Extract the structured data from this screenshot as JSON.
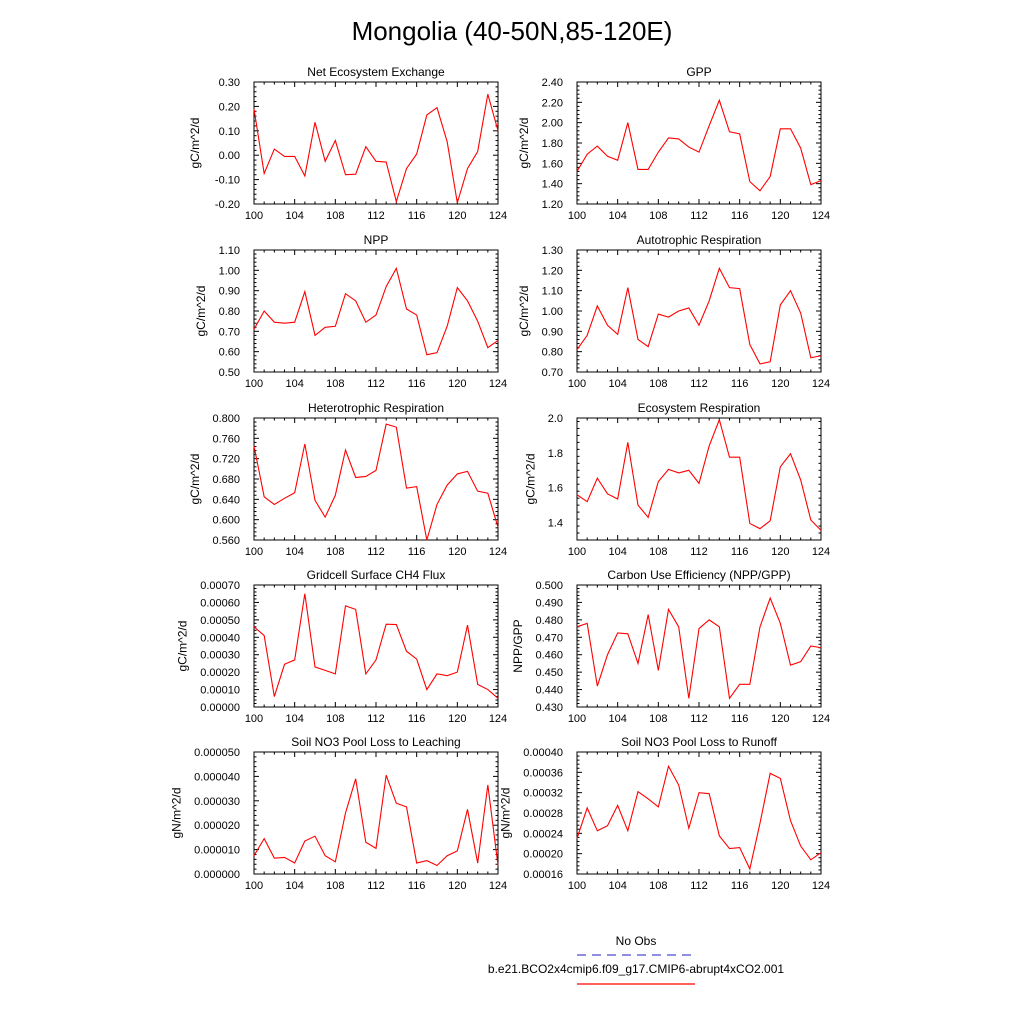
{
  "page_title": "Mongolia (40-50N,85-120E)",
  "legend": {
    "obs_label": "No Obs",
    "model_label": "b.e21.BCO2x4cmip6.f09_g17.CMIP6-abrupt4xCO2.001",
    "obs_color": "#4a4ad0",
    "model_color": "#ff0000"
  },
  "chart_data": [
    {
      "type": "line",
      "title": "Net Ecosystem Exchange",
      "ylabel": "gC/m^2/d",
      "xlim": [
        100,
        124
      ],
      "ylim": [
        -0.2,
        0.3
      ],
      "xticks": [
        100,
        104,
        108,
        112,
        116,
        120,
        124
      ],
      "xtick_labels": [
        "100",
        "104",
        "108",
        "112",
        "116",
        "120",
        "124"
      ],
      "yticks": [
        -0.2,
        -0.1,
        0.0,
        0.1,
        0.2,
        0.3
      ],
      "ytick_labels": [
        "-0.20",
        "-0.10",
        "0.00",
        "0.10",
        "0.20",
        "0.30"
      ],
      "series": [
        {
          "color": "#ff0000",
          "x": [
            100,
            101,
            102,
            103,
            104,
            105,
            106,
            107,
            108,
            109,
            110,
            111,
            112,
            113,
            114,
            115,
            116,
            117,
            118,
            119,
            120,
            121,
            122,
            123,
            124
          ],
          "y": [
            0.19,
            -0.075,
            0.025,
            -0.005,
            -0.005,
            -0.085,
            0.135,
            -0.025,
            0.06,
            -0.08,
            -0.078,
            0.035,
            -0.025,
            -0.028,
            -0.19,
            -0.055,
            0.005,
            0.165,
            0.195,
            0.055,
            -0.195,
            -0.055,
            0.015,
            0.25,
            0.1
          ]
        }
      ]
    },
    {
      "type": "line",
      "title": "GPP",
      "ylabel": "gC/m^2/d",
      "xlim": [
        100,
        124
      ],
      "ylim": [
        1.2,
        2.4
      ],
      "xticks": [
        100,
        104,
        108,
        112,
        116,
        120,
        124
      ],
      "xtick_labels": [
        "100",
        "104",
        "108",
        "112",
        "116",
        "120",
        "124"
      ],
      "yticks": [
        1.2,
        1.4,
        1.6,
        1.8,
        2.0,
        2.2,
        2.4
      ],
      "ytick_labels": [
        "1.20",
        "1.40",
        "1.60",
        "1.80",
        "2.00",
        "2.20",
        "2.40"
      ],
      "series": [
        {
          "color": "#ff0000",
          "x": [
            100,
            101,
            102,
            103,
            104,
            105,
            106,
            107,
            108,
            109,
            110,
            111,
            112,
            113,
            114,
            115,
            116,
            117,
            118,
            119,
            120,
            121,
            122,
            123,
            124
          ],
          "y": [
            1.52,
            1.69,
            1.77,
            1.67,
            1.63,
            2.0,
            1.54,
            1.54,
            1.71,
            1.85,
            1.84,
            1.76,
            1.71,
            1.97,
            2.22,
            1.91,
            1.89,
            1.42,
            1.33,
            1.47,
            1.94,
            1.94,
            1.75,
            1.39,
            1.43
          ]
        }
      ]
    },
    {
      "type": "line",
      "title": "NPP",
      "ylabel": "gC/m^2/d",
      "xlim": [
        100,
        124
      ],
      "ylim": [
        0.5,
        1.1
      ],
      "xticks": [
        100,
        104,
        108,
        112,
        116,
        120,
        124
      ],
      "xtick_labels": [
        "100",
        "104",
        "108",
        "112",
        "116",
        "120",
        "124"
      ],
      "yticks": [
        0.5,
        0.6,
        0.7,
        0.8,
        0.9,
        1.0,
        1.1
      ],
      "ytick_labels": [
        "0.50",
        "0.60",
        "0.70",
        "0.80",
        "0.90",
        "1.00",
        "1.10"
      ],
      "series": [
        {
          "color": "#ff0000",
          "x": [
            100,
            101,
            102,
            103,
            104,
            105,
            106,
            107,
            108,
            109,
            110,
            111,
            112,
            113,
            114,
            115,
            116,
            117,
            118,
            119,
            120,
            121,
            122,
            123,
            124
          ],
          "y": [
            0.71,
            0.8,
            0.745,
            0.74,
            0.745,
            0.895,
            0.68,
            0.72,
            0.725,
            0.885,
            0.85,
            0.745,
            0.78,
            0.92,
            1.01,
            0.81,
            0.78,
            0.585,
            0.595,
            0.725,
            0.915,
            0.85,
            0.75,
            0.62,
            0.655
          ]
        }
      ]
    },
    {
      "type": "line",
      "title": "Autotrophic Respiration",
      "ylabel": "gC/m^2/d",
      "xlim": [
        100,
        124
      ],
      "ylim": [
        0.7,
        1.3
      ],
      "xticks": [
        100,
        104,
        108,
        112,
        116,
        120,
        124
      ],
      "xtick_labels": [
        "100",
        "104",
        "108",
        "112",
        "116",
        "120",
        "124"
      ],
      "yticks": [
        0.7,
        0.8,
        0.9,
        1.0,
        1.1,
        1.2,
        1.3
      ],
      "ytick_labels": [
        "0.70",
        "0.80",
        "0.90",
        "1.00",
        "1.10",
        "1.20",
        "1.30"
      ],
      "series": [
        {
          "color": "#ff0000",
          "x": [
            100,
            101,
            102,
            103,
            104,
            105,
            106,
            107,
            108,
            109,
            110,
            111,
            112,
            113,
            114,
            115,
            116,
            117,
            118,
            119,
            120,
            121,
            122,
            123,
            124
          ],
          "y": [
            0.81,
            0.88,
            1.025,
            0.93,
            0.885,
            1.115,
            0.86,
            0.825,
            0.985,
            0.97,
            1.0,
            1.015,
            0.93,
            1.05,
            1.21,
            1.115,
            1.11,
            0.835,
            0.74,
            0.75,
            1.03,
            1.1,
            0.99,
            0.77,
            0.78
          ]
        }
      ]
    },
    {
      "type": "line",
      "title": "Heterotrophic Respiration",
      "ylabel": "gC/m^2/d",
      "xlim": [
        100,
        124
      ],
      "ylim": [
        0.56,
        0.8
      ],
      "xticks": [
        100,
        104,
        108,
        112,
        116,
        120,
        124
      ],
      "xtick_labels": [
        "100",
        "104",
        "108",
        "112",
        "116",
        "120",
        "124"
      ],
      "yticks": [
        0.56,
        0.6,
        0.64,
        0.68,
        0.72,
        0.76,
        0.8
      ],
      "ytick_labels": [
        "0.560",
        "0.600",
        "0.640",
        "0.680",
        "0.720",
        "0.760",
        "0.800"
      ],
      "series": [
        {
          "color": "#ff0000",
          "x": [
            100,
            101,
            102,
            103,
            104,
            105,
            106,
            107,
            108,
            109,
            110,
            111,
            112,
            113,
            114,
            115,
            116,
            117,
            118,
            119,
            120,
            121,
            122,
            123,
            124
          ],
          "y": [
            0.745,
            0.645,
            0.63,
            0.642,
            0.653,
            0.749,
            0.638,
            0.605,
            0.648,
            0.737,
            0.683,
            0.685,
            0.697,
            0.788,
            0.782,
            0.662,
            0.665,
            0.56,
            0.63,
            0.668,
            0.69,
            0.695,
            0.656,
            0.652,
            0.585
          ]
        }
      ]
    },
    {
      "type": "line",
      "title": "Ecosystem Respiration",
      "ylabel": "gC/m^2/d",
      "xlim": [
        100,
        124
      ],
      "ylim": [
        1.3,
        2.0
      ],
      "xticks": [
        100,
        104,
        108,
        112,
        116,
        120,
        124
      ],
      "xtick_labels": [
        "100",
        "104",
        "108",
        "112",
        "116",
        "120",
        "124"
      ],
      "yticks": [
        1.4,
        1.6,
        1.8,
        2.0
      ],
      "ytick_labels": [
        "1.4",
        "1.6",
        "1.8",
        "2.0"
      ],
      "series": [
        {
          "color": "#ff0000",
          "x": [
            100,
            101,
            102,
            103,
            104,
            105,
            106,
            107,
            108,
            109,
            110,
            111,
            112,
            113,
            114,
            115,
            116,
            117,
            118,
            119,
            120,
            121,
            122,
            123,
            124
          ],
          "y": [
            1.56,
            1.52,
            1.655,
            1.565,
            1.535,
            1.86,
            1.5,
            1.43,
            1.635,
            1.705,
            1.685,
            1.7,
            1.625,
            1.84,
            1.99,
            1.775,
            1.775,
            1.395,
            1.365,
            1.41,
            1.72,
            1.795,
            1.645,
            1.415,
            1.355
          ]
        }
      ]
    },
    {
      "type": "line",
      "title": "Gridcell Surface CH4 Flux",
      "ylabel": "gC/m^2/d",
      "xlim": [
        100,
        124
      ],
      "ylim": [
        0.0,
        0.0007
      ],
      "xticks": [
        100,
        104,
        108,
        112,
        116,
        120,
        124
      ],
      "xtick_labels": [
        "100",
        "104",
        "108",
        "112",
        "116",
        "120",
        "124"
      ],
      "yticks": [
        0.0,
        0.0001,
        0.0002,
        0.0003,
        0.0004,
        0.0005,
        0.0006,
        0.0007
      ],
      "ytick_labels": [
        "0.00000",
        "0.00010",
        "0.00020",
        "0.00030",
        "0.00040",
        "0.00050",
        "0.00060",
        "0.00070"
      ],
      "series": [
        {
          "color": "#ff0000",
          "x": [
            100,
            101,
            102,
            103,
            104,
            105,
            106,
            107,
            108,
            109,
            110,
            111,
            112,
            113,
            114,
            115,
            116,
            117,
            118,
            119,
            120,
            121,
            122,
            123,
            124
          ],
          "y": [
            0.00046,
            0.00041,
            6e-05,
            0.000245,
            0.00027,
            0.00065,
            0.00023,
            0.00021,
            0.00019,
            0.00058,
            0.00056,
            0.00019,
            0.00027,
            0.000475,
            0.000473,
            0.00032,
            0.000275,
            0.0001,
            0.00019,
            0.00018,
            0.0002,
            0.00047,
            0.00013,
            0.0001,
            5e-05
          ]
        }
      ]
    },
    {
      "type": "line",
      "title": "Carbon Use Efficiency (NPP/GPP)",
      "ylabel": "NPP/GPP",
      "xlim": [
        100,
        124
      ],
      "ylim": [
        0.43,
        0.5
      ],
      "xticks": [
        100,
        104,
        108,
        112,
        116,
        120,
        124
      ],
      "xtick_labels": [
        "100",
        "104",
        "108",
        "112",
        "116",
        "120",
        "124"
      ],
      "yticks": [
        0.43,
        0.44,
        0.45,
        0.46,
        0.47,
        0.48,
        0.49,
        0.5
      ],
      "ytick_labels": [
        "0.430",
        "0.440",
        "0.450",
        "0.460",
        "0.470",
        "0.480",
        "0.490",
        "0.500"
      ],
      "series": [
        {
          "color": "#ff0000",
          "x": [
            100,
            101,
            102,
            103,
            104,
            105,
            106,
            107,
            108,
            109,
            110,
            111,
            112,
            113,
            114,
            115,
            116,
            117,
            118,
            119,
            120,
            121,
            122,
            123,
            124
          ],
          "y": [
            0.476,
            0.478,
            0.442,
            0.46,
            0.4725,
            0.472,
            0.455,
            0.483,
            0.451,
            0.486,
            0.476,
            0.435,
            0.475,
            0.48,
            0.476,
            0.435,
            0.443,
            0.443,
            0.476,
            0.4925,
            0.478,
            0.454,
            0.456,
            0.465,
            0.464
          ]
        }
      ]
    },
    {
      "type": "line",
      "title": "Soil NO3 Pool Loss to Leaching",
      "ylabel": "gN/m^2/d",
      "xlim": [
        100,
        124
      ],
      "ylim": [
        0.0,
        5e-05
      ],
      "xticks": [
        100,
        104,
        108,
        112,
        116,
        120,
        124
      ],
      "xtick_labels": [
        "100",
        "104",
        "108",
        "112",
        "116",
        "120",
        "124"
      ],
      "yticks": [
        0.0,
        1e-05,
        2e-05,
        3e-05,
        4e-05,
        5e-05
      ],
      "ytick_labels": [
        "0.000000",
        "0.000010",
        "0.000020",
        "0.000030",
        "0.000040",
        "0.000050"
      ],
      "series": [
        {
          "color": "#ff0000",
          "x": [
            100,
            101,
            102,
            103,
            104,
            105,
            106,
            107,
            108,
            109,
            110,
            111,
            112,
            113,
            114,
            115,
            116,
            117,
            118,
            119,
            120,
            121,
            122,
            123,
            124
          ],
          "y": [
            7.5e-06,
            1.45e-05,
            6.5e-06,
            6.8e-06,
            4.5e-06,
            1.35e-05,
            1.55e-05,
            7.5e-06,
            5e-06,
            2.5e-05,
            3.9e-05,
            1.3e-05,
            1.05e-05,
            4.05e-05,
            2.9e-05,
            2.75e-05,
            4.5e-06,
            5.5e-06,
            3.5e-06,
            7.5e-06,
            9.5e-06,
            2.65e-05,
            4.5e-06,
            3.65e-05,
            3.5e-06
          ]
        }
      ]
    },
    {
      "type": "line",
      "title": "Soil NO3 Pool Loss to Runoff",
      "ylabel": "gN/m^2/d",
      "xlim": [
        100,
        124
      ],
      "ylim": [
        0.00016,
        0.0004
      ],
      "xticks": [
        100,
        104,
        108,
        112,
        116,
        120,
        124
      ],
      "xtick_labels": [
        "100",
        "104",
        "108",
        "112",
        "116",
        "120",
        "124"
      ],
      "yticks": [
        0.00016,
        0.0002,
        0.00024,
        0.00028,
        0.00032,
        0.00036,
        0.0004
      ],
      "ytick_labels": [
        "0.00016",
        "0.00020",
        "0.00024",
        "0.00028",
        "0.00032",
        "0.00036",
        "0.00040"
      ],
      "series": [
        {
          "color": "#ff0000",
          "x": [
            100,
            101,
            102,
            103,
            104,
            105,
            106,
            107,
            108,
            109,
            110,
            111,
            112,
            113,
            114,
            115,
            116,
            117,
            118,
            119,
            120,
            121,
            122,
            123,
            124
          ],
          "y": [
            0.00023,
            0.00029,
            0.000245,
            0.000255,
            0.000295,
            0.000245,
            0.000322,
            0.000308,
            0.000292,
            0.000372,
            0.000335,
            0.00025,
            0.00032,
            0.000318,
            0.000235,
            0.00021,
            0.000212,
            0.00017,
            0.00026,
            0.000358,
            0.000348,
            0.000265,
            0.000215,
            0.000188,
            0.000202
          ]
        }
      ]
    }
  ]
}
